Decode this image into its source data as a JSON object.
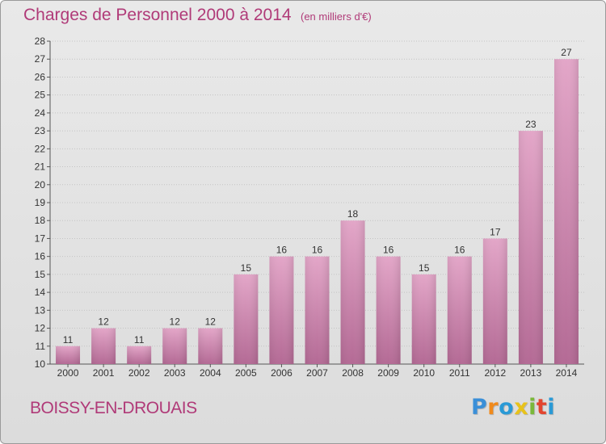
{
  "header": {
    "title": "Charges de Personnel 2000 à 2014",
    "subtitle": "(en milliers d'€)"
  },
  "footer": {
    "commune": "BOISSY-EN-DROUAIS",
    "brand_letters": [
      {
        "ch": "P",
        "color": "#3a8fd8"
      },
      {
        "ch": "r",
        "color": "#f08a1c"
      },
      {
        "ch": "o",
        "color": "#2a9ad6"
      },
      {
        "ch": "x",
        "color": "#e8c21a"
      },
      {
        "ch": "i",
        "color": "#7ab83a"
      },
      {
        "ch": "t",
        "color": "#e2452f"
      },
      {
        "ch": "i",
        "color": "#2a9ad6"
      }
    ]
  },
  "chart_data": {
    "type": "bar",
    "title": "Charges de Personnel 2000 à 2014",
    "subtitle": "(en milliers d'€)",
    "xlabel": "",
    "ylabel": "",
    "categories": [
      "2000",
      "2001",
      "2002",
      "2003",
      "2004",
      "2005",
      "2006",
      "2007",
      "2008",
      "2009",
      "2010",
      "2011",
      "2012",
      "2013",
      "2014"
    ],
    "values": [
      11,
      12,
      11,
      12,
      12,
      15,
      16,
      16,
      18,
      16,
      15,
      16,
      17,
      23,
      27
    ],
    "ylim": [
      10,
      28
    ],
    "yticks": [
      10,
      11,
      12,
      13,
      14,
      15,
      16,
      17,
      18,
      19,
      20,
      21,
      22,
      23,
      24,
      25,
      26,
      27,
      28
    ],
    "grid": true,
    "bar_color": "#d98cb5",
    "bar_color_dark": "#b46a95"
  }
}
